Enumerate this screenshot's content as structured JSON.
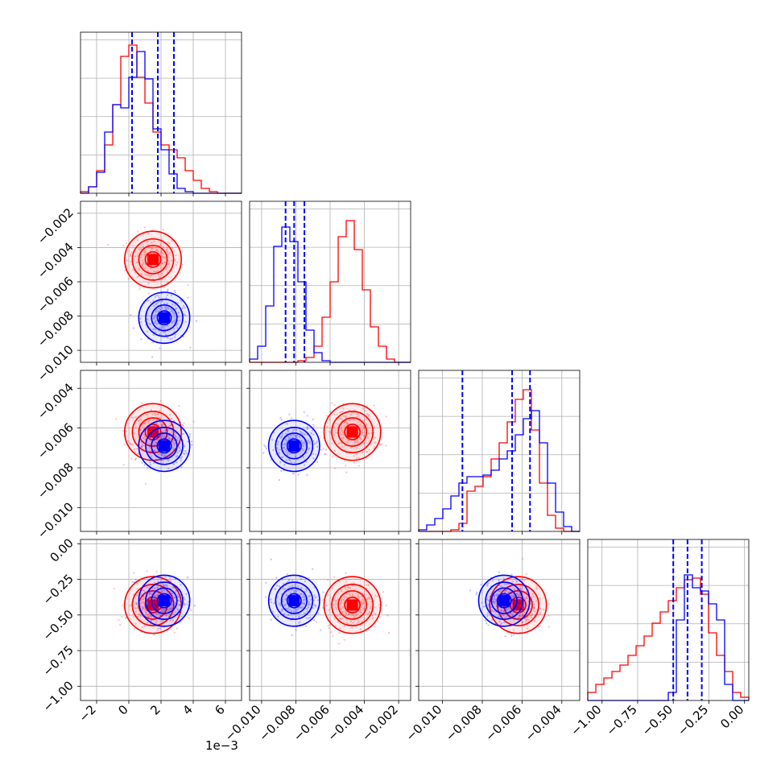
{
  "colors": {
    "series_a": "#ff0000",
    "series_b": "#0000ff",
    "grid": "#b0b0b0",
    "frame": "#000000"
  },
  "x_offset_label": "1e−3",
  "chart_data": {
    "type": "corner",
    "grid": true,
    "parameters": [
      {
        "range": [
          -3.0,
          7.0
        ],
        "ticks": [
          -2,
          0,
          2,
          4,
          6
        ],
        "tick_labels": [
          "−2",
          "0",
          "2",
          "4",
          "6"
        ]
      },
      {
        "range": [
          -0.0107,
          -0.0013
        ],
        "ticks": [
          -0.01,
          -0.008,
          -0.006,
          -0.004,
          -0.002
        ],
        "tick_labels": [
          "−0.010",
          "−0.008",
          "−0.006",
          "−0.004",
          "−0.002"
        ]
      },
      {
        "range": [
          -0.0112,
          -0.0031
        ],
        "ticks": [
          -0.01,
          -0.008,
          -0.006,
          -0.004
        ],
        "tick_labels": [
          "−0.010",
          "−0.008",
          "−0.006",
          "−0.004"
        ]
      },
      {
        "range": [
          -1.1,
          0.03
        ],
        "ticks": [
          -1.0,
          -0.75,
          -0.5,
          -0.25,
          0.0
        ],
        "tick_labels": [
          "−1.00",
          "−0.75",
          "−0.50",
          "−0.25",
          "0.00"
        ]
      }
    ],
    "series": [
      {
        "color": "#ff0000",
        "mean": [
          1.5,
          -0.0047,
          -0.0062,
          -0.43
        ],
        "histograms": [
          [
            0.01,
            0.04,
            0.14,
            0.3,
            0.55,
            0.85,
            0.92,
            0.72,
            0.56,
            0.38,
            0.3,
            0.27,
            0.22,
            0.14,
            0.08,
            0.03,
            0.01,
            0.0,
            0.0,
            0.0
          ],
          [
            0.0,
            0.0,
            0.0,
            0.0,
            0.0,
            0.0,
            0.01,
            0.03,
            0.1,
            0.28,
            0.5,
            0.78,
            0.88,
            0.7,
            0.45,
            0.22,
            0.1,
            0.02,
            0.0,
            0.0
          ],
          [
            0.0,
            0.0,
            0.0,
            0.0,
            0.01,
            0.05,
            0.25,
            0.28,
            0.34,
            0.45,
            0.55,
            0.68,
            0.82,
            0.88,
            0.63,
            0.3,
            0.1,
            0.02,
            0.0,
            0.0
          ],
          [
            0.05,
            0.1,
            0.14,
            0.18,
            0.22,
            0.28,
            0.34,
            0.4,
            0.48,
            0.55,
            0.62,
            0.7,
            0.75,
            0.76,
            0.66,
            0.42,
            0.28,
            0.18,
            0.05,
            0.02
          ]
        ]
      },
      {
        "color": "#0000ff",
        "mean": [
          2.2,
          -0.0081,
          -0.0069,
          -0.4
        ],
        "histograms": [
          [
            0.0,
            0.04,
            0.13,
            0.38,
            0.55,
            0.53,
            0.72,
            0.88,
            0.71,
            0.4,
            0.27,
            0.12,
            0.03,
            0.01,
            0.0,
            0.0,
            0.0,
            0.0,
            0.0,
            0.0
          ],
          [
            0.02,
            0.1,
            0.35,
            0.72,
            0.84,
            0.75,
            0.5,
            0.2,
            0.06,
            0.01,
            0.0,
            0.0,
            0.0,
            0.0,
            0.0,
            0.0,
            0.0,
            0.0,
            0.0,
            0.0
          ],
          [
            0.01,
            0.04,
            0.08,
            0.14,
            0.22,
            0.3,
            0.34,
            0.34,
            0.35,
            0.38,
            0.45,
            0.5,
            0.6,
            0.7,
            0.75,
            0.55,
            0.3,
            0.12,
            0.03,
            0.0
          ],
          [
            0.0,
            0.0,
            0.0,
            0.0,
            0.0,
            0.0,
            0.0,
            0.0,
            0.0,
            0.0,
            0.05,
            0.5,
            0.78,
            0.7,
            0.68,
            0.6,
            0.5,
            0.1,
            0.0,
            0.0
          ]
        ]
      }
    ],
    "quantile_lines": {
      "color": "#0000ff",
      "values": [
        [
          0.2,
          1.8,
          2.8
        ],
        [
          -0.0086,
          -0.0081,
          -0.0075
        ],
        [
          -0.009,
          -0.0065,
          -0.0056
        ],
        [
          -0.5,
          -0.4,
          -0.3
        ]
      ]
    }
  }
}
